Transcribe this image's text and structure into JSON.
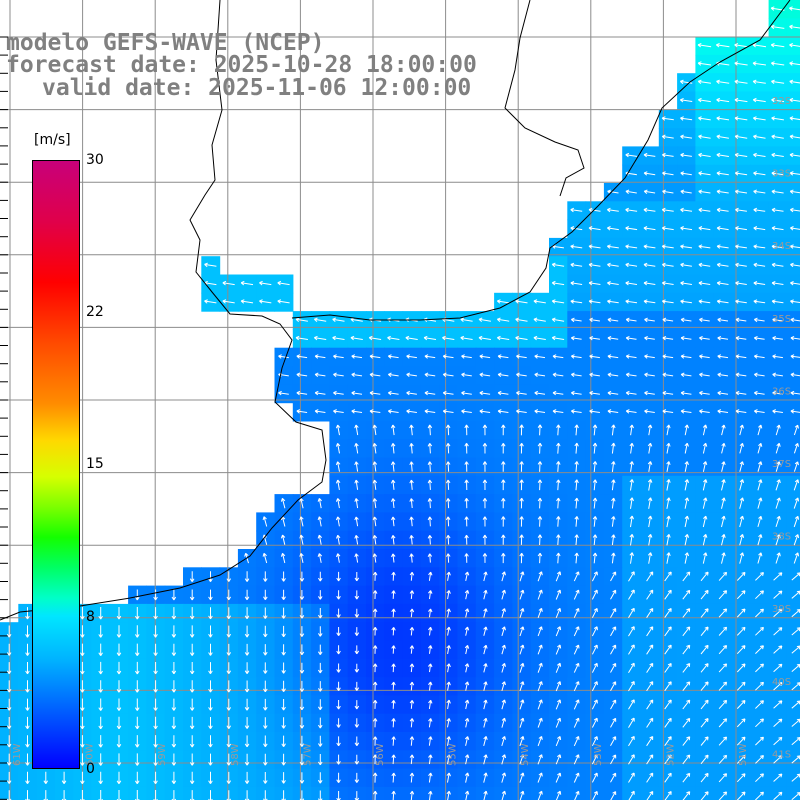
{
  "title": {
    "line1": "modelo GEFS-WAVE (NCEP)",
    "line2": "forecast date: 2025-10-28 18:00:00",
    "line3": "valid date: 2025-11-06 12:00:00"
  },
  "colorbar": {
    "unit": "[m/s]",
    "ticks": [
      {
        "value": 30,
        "label": "30"
      },
      {
        "value": 22,
        "label": "22"
      },
      {
        "value": 15,
        "label": "15"
      },
      {
        "value": 8,
        "label": "8"
      },
      {
        "value": 0,
        "label": "0"
      }
    ]
  },
  "map": {
    "lat_labels": [
      "32S",
      "33S",
      "34S",
      "35S",
      "36S",
      "37S",
      "38S",
      "39S",
      "40S",
      "41S"
    ],
    "lon_labels": [
      "61W",
      "60W",
      "59W",
      "58W",
      "57W",
      "56W",
      "55W",
      "54W",
      "53W",
      "52W",
      "51W"
    ]
  }
}
